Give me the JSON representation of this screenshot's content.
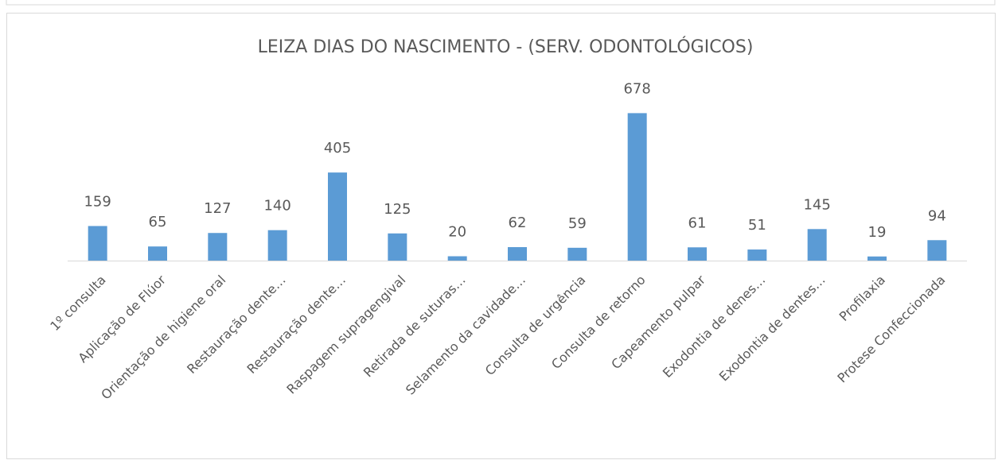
{
  "chart_data": {
    "type": "bar",
    "title": "LEIZA DIAS DO NASCIMENTO - (SERV. ODONTOLÓGICOS)",
    "categories": [
      "1º consulta",
      "Aplicação de Flúor",
      "Orientação de higiene oral",
      "Restauração dente…",
      "Restauração dente…",
      "Raspagem supragengival",
      "Retirada de suturas…",
      "Selamento da cavidade…",
      "Consulta de urgência",
      "Consulta de retorno",
      "Capeamento pulpar",
      "Exodontia de denes…",
      "Exodontia de dentes…",
      "Profilaxia",
      "Protese Confeccionada"
    ],
    "values": [
      159,
      65,
      127,
      140,
      405,
      125,
      20,
      62,
      59,
      678,
      61,
      51,
      145,
      19,
      94
    ],
    "color": "#5b9bd5",
    "ylim": [
      0,
      800
    ]
  }
}
